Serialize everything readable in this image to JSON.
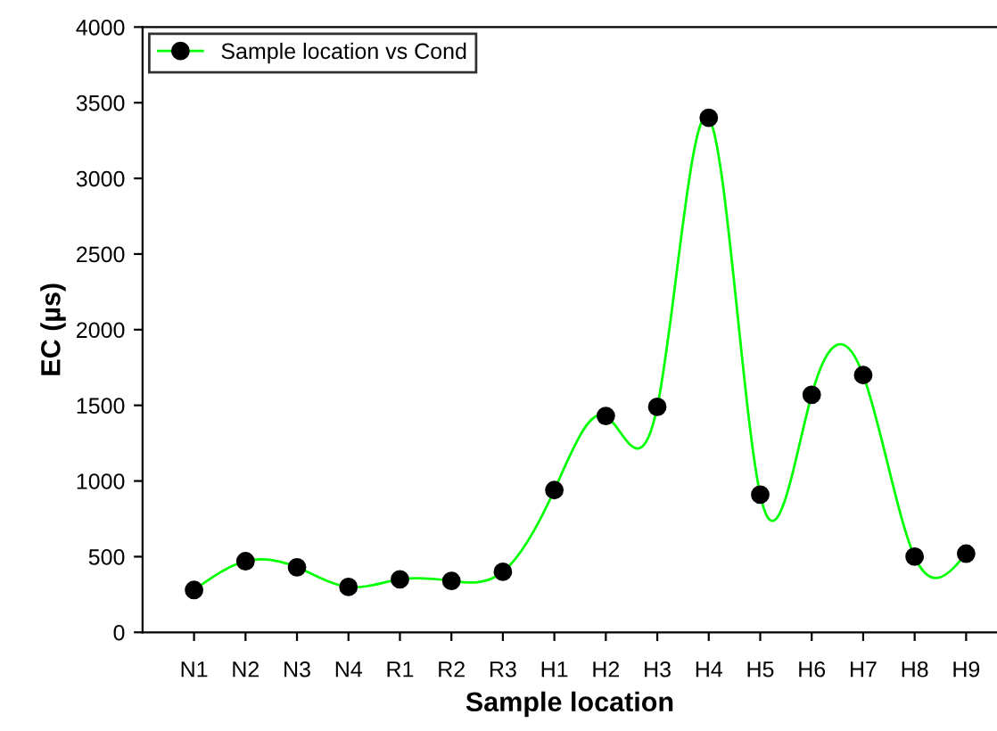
{
  "chart_data": {
    "type": "line",
    "xlabel": "Sample location",
    "ylabel": "EC (µs)",
    "categories": [
      "N1",
      "N2",
      "N3",
      "N4",
      "R1",
      "R2",
      "R3",
      "H1",
      "H2",
      "H3",
      "H4",
      "H5",
      "H6",
      "H7",
      "H8",
      "H9"
    ],
    "series": [
      {
        "name": "Sample location vs Cond",
        "color": "#00ff00",
        "values": [
          280,
          470,
          430,
          300,
          350,
          340,
          400,
          940,
          1430,
          1490,
          3400,
          910,
          1570,
          1700,
          500,
          520
        ]
      }
    ],
    "ylim": [
      0,
      4000
    ],
    "yticks": [
      0,
      500,
      1000,
      1500,
      2000,
      2500,
      3000,
      3500,
      4000
    ],
    "marker": "circle",
    "line_style": "solid",
    "grid": false,
    "legend": "top left"
  }
}
